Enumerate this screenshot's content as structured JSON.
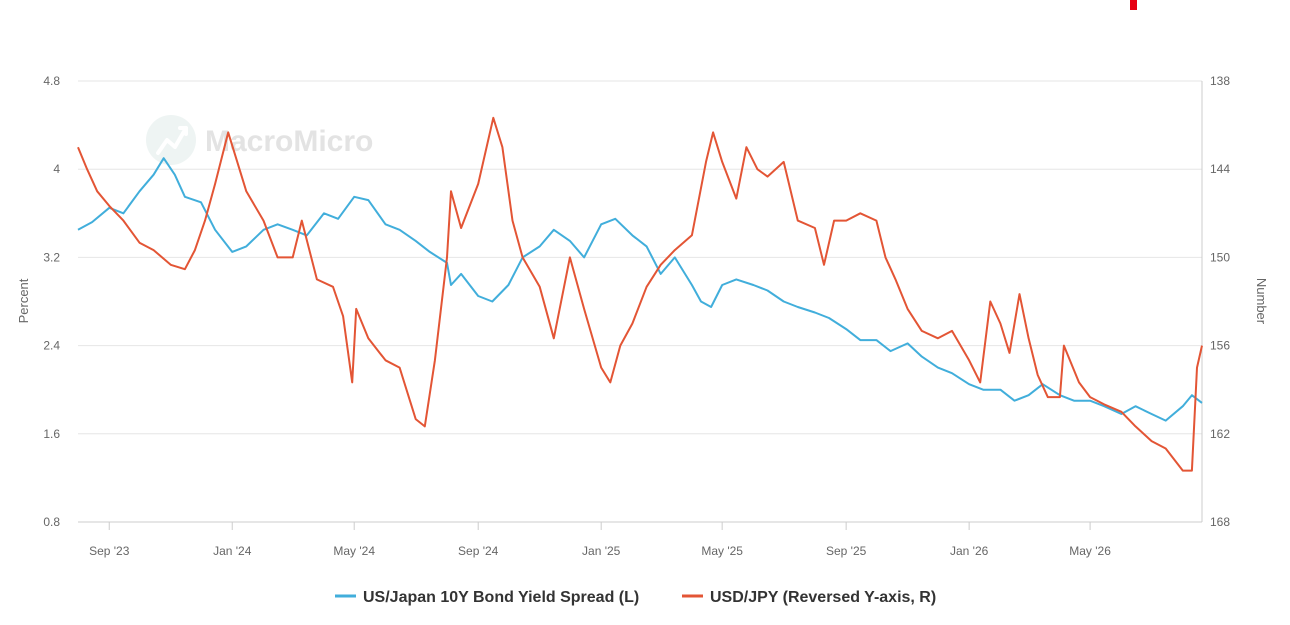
{
  "watermark": {
    "text": "MacroMicro",
    "icon": "chart-trend-icon"
  },
  "chart_data": {
    "type": "line",
    "title": "",
    "grid": true,
    "legend_placement": "bottom-center",
    "x_labels": [
      "Sep '23",
      "Jan '24",
      "May '24",
      "Sep '24",
      "Jan '25",
      "May '25",
      "Sep '25",
      "Jan '26",
      "May '26"
    ],
    "x_label_dates": [
      "2023-09-01",
      "2024-01-01",
      "2024-05-01",
      "2024-09-01",
      "2025-01-01",
      "2025-05-01",
      "2025-09-01",
      "2026-01-01",
      "2026-05-01"
    ],
    "x_range": [
      "2023-08-01",
      "2026-08-20"
    ],
    "y_left": {
      "label": "Percent",
      "range": [
        0.8,
        4.8
      ],
      "ticks": [
        "0.8",
        "1.6",
        "2.4",
        "3.2",
        "4",
        "4.8"
      ]
    },
    "y_right": {
      "label": "Number",
      "range": [
        168,
        138
      ],
      "reversed": true,
      "ticks": [
        "168",
        "162",
        "156",
        "150",
        "144",
        "138"
      ]
    },
    "series": [
      {
        "name": "US/Japan 10Y Bond Yield Spread (L)",
        "axis": "left",
        "color": "#41aedb",
        "points": [
          [
            "2023-08-01",
            3.45
          ],
          [
            "2023-08-15",
            3.52
          ],
          [
            "2023-09-01",
            3.65
          ],
          [
            "2023-09-15",
            3.6
          ],
          [
            "2023-10-01",
            3.8
          ],
          [
            "2023-10-15",
            3.95
          ],
          [
            "2023-10-25",
            4.1
          ],
          [
            "2023-11-05",
            3.95
          ],
          [
            "2023-11-15",
            3.75
          ],
          [
            "2023-12-01",
            3.7
          ],
          [
            "2023-12-15",
            3.45
          ],
          [
            "2024-01-01",
            3.25
          ],
          [
            "2024-01-15",
            3.3
          ],
          [
            "2024-02-01",
            3.45
          ],
          [
            "2024-02-15",
            3.5
          ],
          [
            "2024-03-01",
            3.45
          ],
          [
            "2024-03-15",
            3.4
          ],
          [
            "2024-04-01",
            3.6
          ],
          [
            "2024-04-15",
            3.55
          ],
          [
            "2024-05-01",
            3.75
          ],
          [
            "2024-05-15",
            3.72
          ],
          [
            "2024-06-01",
            3.5
          ],
          [
            "2024-06-15",
            3.45
          ],
          [
            "2024-07-01",
            3.35
          ],
          [
            "2024-07-15",
            3.25
          ],
          [
            "2024-08-01",
            3.15
          ],
          [
            "2024-08-05",
            2.95
          ],
          [
            "2024-08-15",
            3.05
          ],
          [
            "2024-09-01",
            2.85
          ],
          [
            "2024-09-15",
            2.8
          ],
          [
            "2024-10-01",
            2.95
          ],
          [
            "2024-10-15",
            3.2
          ],
          [
            "2024-11-01",
            3.3
          ],
          [
            "2024-11-15",
            3.45
          ],
          [
            "2024-12-01",
            3.35
          ],
          [
            "2024-12-15",
            3.2
          ],
          [
            "2025-01-01",
            3.5
          ],
          [
            "2025-01-15",
            3.55
          ],
          [
            "2025-02-01",
            3.4
          ],
          [
            "2025-02-15",
            3.3
          ],
          [
            "2025-03-01",
            3.05
          ],
          [
            "2025-03-15",
            3.2
          ],
          [
            "2025-04-01",
            2.95
          ],
          [
            "2025-04-10",
            2.8
          ],
          [
            "2025-04-20",
            2.75
          ],
          [
            "2025-05-01",
            2.95
          ],
          [
            "2025-05-15",
            3.0
          ],
          [
            "2025-06-01",
            2.95
          ],
          [
            "2025-06-15",
            2.9
          ],
          [
            "2025-07-01",
            2.8
          ],
          [
            "2025-07-15",
            2.75
          ],
          [
            "2025-08-01",
            2.7
          ],
          [
            "2025-08-15",
            2.65
          ],
          [
            "2025-09-01",
            2.55
          ],
          [
            "2025-09-15",
            2.45
          ],
          [
            "2025-10-01",
            2.45
          ],
          [
            "2025-10-15",
            2.35
          ],
          [
            "2025-11-01",
            2.42
          ],
          [
            "2025-11-15",
            2.3
          ],
          [
            "2025-12-01",
            2.2
          ],
          [
            "2025-12-15",
            2.15
          ],
          [
            "2026-01-01",
            2.05
          ],
          [
            "2026-01-15",
            2.0
          ],
          [
            "2026-02-01",
            2.0
          ],
          [
            "2026-02-15",
            1.9
          ],
          [
            "2026-03-01",
            1.95
          ],
          [
            "2026-03-15",
            2.05
          ],
          [
            "2026-04-01",
            1.95
          ],
          [
            "2026-04-15",
            1.9
          ],
          [
            "2026-05-01",
            1.9
          ],
          [
            "2026-05-15",
            1.85
          ],
          [
            "2026-06-01",
            1.78
          ],
          [
            "2026-06-15",
            1.85
          ],
          [
            "2026-07-01",
            1.78
          ],
          [
            "2026-07-15",
            1.72
          ],
          [
            "2026-08-01",
            1.85
          ],
          [
            "2026-08-10",
            1.95
          ],
          [
            "2026-08-20",
            1.88
          ]
        ]
      },
      {
        "name": "USD/JPY (Reversed Y-axis, R)",
        "axis": "right",
        "color": "#e35535",
        "points": [
          [
            "2023-08-01",
            142.5
          ],
          [
            "2023-08-10",
            144
          ],
          [
            "2023-08-20",
            145.5
          ],
          [
            "2023-09-01",
            146.5
          ],
          [
            "2023-09-15",
            147.5
          ],
          [
            "2023-10-01",
            149
          ],
          [
            "2023-10-15",
            149.5
          ],
          [
            "2023-11-01",
            150.5
          ],
          [
            "2023-11-15",
            150.8
          ],
          [
            "2023-11-25",
            149.5
          ],
          [
            "2023-12-05",
            147.5
          ],
          [
            "2023-12-15",
            145
          ],
          [
            "2023-12-28",
            141.5
          ],
          [
            "2024-01-15",
            145.5
          ],
          [
            "2024-02-01",
            147.5
          ],
          [
            "2024-02-15",
            150
          ],
          [
            "2024-03-01",
            150
          ],
          [
            "2024-03-10",
            147.5
          ],
          [
            "2024-03-25",
            151.5
          ],
          [
            "2024-04-10",
            152
          ],
          [
            "2024-04-20",
            154
          ],
          [
            "2024-04-29",
            158.5
          ],
          [
            "2024-05-03",
            153.5
          ],
          [
            "2024-05-15",
            155.5
          ],
          [
            "2024-06-01",
            157
          ],
          [
            "2024-06-15",
            157.5
          ],
          [
            "2024-07-01",
            161
          ],
          [
            "2024-07-10",
            161.5
          ],
          [
            "2024-07-20",
            157
          ],
          [
            "2024-08-01",
            150
          ],
          [
            "2024-08-05",
            145.5
          ],
          [
            "2024-08-15",
            148
          ],
          [
            "2024-09-01",
            145
          ],
          [
            "2024-09-16",
            140.5
          ],
          [
            "2024-09-25",
            142.5
          ],
          [
            "2024-10-05",
            147.5
          ],
          [
            "2024-10-15",
            150
          ],
          [
            "2024-11-01",
            152
          ],
          [
            "2024-11-15",
            155.5
          ],
          [
            "2024-12-01",
            150
          ],
          [
            "2024-12-15",
            153.5
          ],
          [
            "2025-01-01",
            157.5
          ],
          [
            "2025-01-10",
            158.5
          ],
          [
            "2025-01-20",
            156
          ],
          [
            "2025-02-01",
            154.5
          ],
          [
            "2025-02-15",
            152
          ],
          [
            "2025-03-01",
            150.5
          ],
          [
            "2025-03-15",
            149.5
          ],
          [
            "2025-04-01",
            148.5
          ],
          [
            "2025-04-15",
            143.5
          ],
          [
            "2025-04-22",
            141.5
          ],
          [
            "2025-05-01",
            143.5
          ],
          [
            "2025-05-15",
            146
          ],
          [
            "2025-05-25",
            142.5
          ],
          [
            "2025-06-05",
            144
          ],
          [
            "2025-06-15",
            144.5
          ],
          [
            "2025-07-01",
            143.5
          ],
          [
            "2025-07-15",
            147.5
          ],
          [
            "2025-08-01",
            148
          ],
          [
            "2025-08-10",
            150.5
          ],
          [
            "2025-08-20",
            147.5
          ],
          [
            "2025-09-01",
            147.5
          ],
          [
            "2025-09-15",
            147
          ],
          [
            "2025-10-01",
            147.5
          ],
          [
            "2025-10-10",
            150
          ],
          [
            "2025-10-20",
            151.5
          ],
          [
            "2025-11-01",
            153.5
          ],
          [
            "2025-11-15",
            155
          ],
          [
            "2025-12-01",
            155.5
          ],
          [
            "2025-12-15",
            155
          ],
          [
            "2026-01-01",
            157
          ],
          [
            "2026-01-12",
            158.5
          ],
          [
            "2026-01-22",
            153
          ],
          [
            "2026-02-01",
            154.5
          ],
          [
            "2026-02-10",
            156.5
          ],
          [
            "2026-02-20",
            152.5
          ],
          [
            "2026-03-01",
            155.5
          ],
          [
            "2026-03-10",
            158
          ],
          [
            "2026-03-20",
            159.5
          ],
          [
            "2026-04-01",
            159.5
          ],
          [
            "2026-04-05",
            156
          ],
          [
            "2026-04-20",
            158.5
          ],
          [
            "2026-05-01",
            159.5
          ],
          [
            "2026-05-15",
            160
          ],
          [
            "2026-06-01",
            160.5
          ],
          [
            "2026-06-15",
            161.5
          ],
          [
            "2026-07-01",
            162.5
          ],
          [
            "2026-07-15",
            163
          ],
          [
            "2026-08-01",
            164.5
          ],
          [
            "2026-08-10",
            164.5
          ],
          [
            "2026-08-15",
            157.5
          ],
          [
            "2026-08-20",
            156
          ]
        ]
      }
    ]
  }
}
